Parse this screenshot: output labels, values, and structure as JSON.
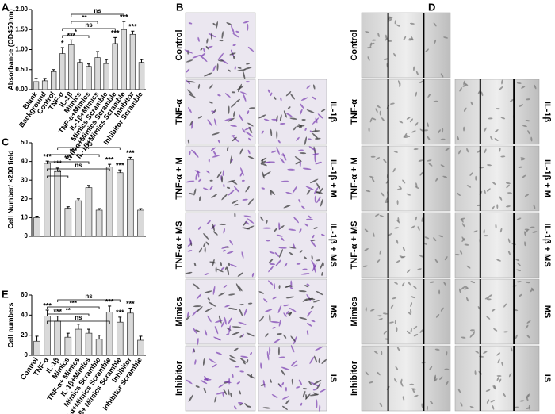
{
  "chart_data": [
    {
      "panel": "A",
      "type": "bar",
      "ylabel": "Absorbance (OD450nm)",
      "color": "#d9d9d9",
      "categories": [
        "Blank",
        "Background",
        "Control",
        "TNF-α",
        "IL-1β",
        "Mimics",
        "TNF-α+Mimics",
        "IL-1β+Mimics",
        "Mimics Scramble",
        "TNF-α+Mimics Scramble",
        "IL-1β+Mimics Scramble",
        "Inhibitor",
        "Inhibitor Scramble"
      ],
      "values": [
        0.2,
        0.22,
        0.45,
        0.9,
        1.12,
        0.68,
        0.58,
        0.8,
        0.65,
        1.15,
        1.5,
        1.38,
        0.68
      ],
      "errors": [
        0.08,
        0.06,
        0.05,
        0.15,
        0.12,
        0.08,
        0.06,
        0.15,
        0.1,
        0.15,
        0.2,
        0.08,
        0.07
      ],
      "significance": [
        null,
        null,
        null,
        "*",
        "***",
        null,
        null,
        null,
        null,
        "***",
        "***",
        "***",
        null
      ],
      "brackets": [
        "ns",
        "**",
        "ns",
        "*"
      ],
      "ylim": [
        0,
        2
      ],
      "yticks": [
        {
          "value": 0,
          "label": "0.00"
        },
        {
          "value": 0.5,
          "label": "0.50"
        },
        {
          "value": 1,
          "label": "1.00"
        },
        {
          "value": 1.5,
          "label": "1.50"
        },
        {
          "value": 2,
          "label": "2.00"
        }
      ]
    },
    {
      "panel": "C",
      "type": "bar",
      "ylabel": "Cell Number/ ×200 field",
      "color": "#d9d9d9",
      "categories": [
        null,
        null,
        null,
        null,
        null,
        null,
        null,
        null,
        null,
        null,
        null
      ],
      "values": [
        10,
        39,
        35,
        15,
        19,
        26,
        14,
        37,
        34,
        41,
        14
      ],
      "errors": [
        0.8,
        1.2,
        1.5,
        0.8,
        1,
        1.2,
        0.8,
        1.5,
        1.5,
        1.2,
        0.8
      ],
      "significance": [
        null,
        "***",
        "***",
        null,
        null,
        null,
        null,
        "***",
        "***",
        "***",
        null
      ],
      "brackets": [
        "ns",
        "***",
        "***",
        "ns",
        "***"
      ],
      "ylim": [
        0,
        50
      ],
      "yticks": [
        0,
        10,
        20,
        30,
        40,
        50
      ]
    },
    {
      "panel": "E",
      "type": "bar",
      "ylabel": "Cell numbers",
      "color": "#d9d9d9",
      "categories": [
        "Control",
        "TNF-α",
        "IL-1β",
        "Mimics",
        "TNF-α+ Mimics",
        "IL-1β+Mimics",
        "Mimics Scramble",
        "TNF-α+Mimics Scramble",
        "IL-1β+ Mimics Scramble",
        "Inhibitor",
        "Inhibitor Scramble"
      ],
      "values": [
        14,
        39,
        34,
        18,
        26,
        22,
        16,
        43,
        33,
        42,
        15
      ],
      "errors": [
        5,
        6,
        5,
        4,
        5,
        4,
        4,
        6,
        5,
        5,
        4
      ],
      "significance": [
        null,
        "***",
        "***",
        null,
        null,
        null,
        null,
        "***",
        "***",
        "***",
        null
      ],
      "brackets": [
        "ns",
        "***",
        "**",
        "ns"
      ],
      "ylim": [
        0,
        60
      ],
      "yticks": [
        0,
        20,
        40,
        60
      ]
    }
  ],
  "panel_B": {
    "label": "B",
    "rows": [
      {
        "left": "Control"
      },
      {
        "left": "TNF-α",
        "right": "IL-1β"
      },
      {
        "left": "TNF-α + M",
        "right": "IL-1β + M"
      },
      {
        "left": "TNF-α + MS",
        "right": "IL-1β + MS"
      },
      {
        "left": "Mimics",
        "right": "MS"
      },
      {
        "left": "Inhibitor",
        "right": "IS"
      }
    ]
  },
  "panel_D": {
    "label": "D",
    "rows": [
      {
        "left": "Control"
      },
      {
        "left": "TNF-α",
        "right": "IL-1β"
      },
      {
        "left": "TNF-α + M",
        "right": "IL-1β + M"
      },
      {
        "left": "TNF-α + MS",
        "right": "IL-1β + MS"
      },
      {
        "left": "Mimics",
        "right": "MS"
      },
      {
        "left": "Inhibitor",
        "right": "IS"
      }
    ]
  }
}
